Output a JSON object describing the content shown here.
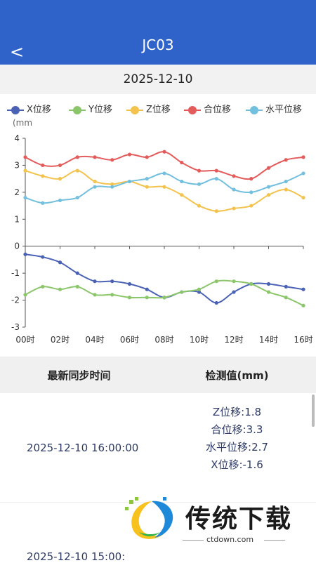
{
  "header": {
    "title": "JC03",
    "back_icon": "chevron-left-icon",
    "back_glyph": "<"
  },
  "date": "2025-12-10",
  "legend": [
    {
      "name": "X位移",
      "color": "#4a62b5"
    },
    {
      "name": "Y位移",
      "color": "#8cc66b"
    },
    {
      "name": "Z位移",
      "color": "#f3c34d"
    },
    {
      "name": "合位移",
      "color": "#e45b5b"
    },
    {
      "name": "水平位移",
      "color": "#73c0de"
    }
  ],
  "chart_data": {
    "type": "line",
    "unit_label": "(mm",
    "ylim": [
      -3,
      4
    ],
    "yticks": [
      4,
      3,
      2,
      1,
      0,
      -1,
      -2,
      -3
    ],
    "xticks": [
      "00时",
      "02时",
      "04时",
      "06时",
      "08时",
      "10时",
      "12时",
      "14时",
      "16时"
    ],
    "x_count": 17,
    "series": [
      {
        "name": "X位移",
        "color": "#4a62b5",
        "values": [
          -0.3,
          -0.4,
          -0.6,
          -1.0,
          -1.3,
          -1.3,
          -1.4,
          -1.6,
          -1.9,
          -1.7,
          -1.7,
          -2.1,
          -1.7,
          -1.4,
          -1.4,
          -1.5,
          -1.6
        ]
      },
      {
        "name": "Y位移",
        "color": "#8cc66b",
        "values": [
          -1.8,
          -1.5,
          -1.6,
          -1.5,
          -1.8,
          -1.8,
          -1.9,
          -1.9,
          -1.9,
          -1.7,
          -1.6,
          -1.3,
          -1.3,
          -1.4,
          -1.7,
          -1.9,
          -2.2
        ]
      },
      {
        "name": "Z位移",
        "color": "#f3c34d",
        "values": [
          2.8,
          2.6,
          2.5,
          2.8,
          2.4,
          2.3,
          2.4,
          2.2,
          2.2,
          1.9,
          1.5,
          1.3,
          1.4,
          1.5,
          1.9,
          2.1,
          1.8
        ]
      },
      {
        "name": "合位移",
        "color": "#e45b5b",
        "values": [
          3.3,
          3.0,
          3.0,
          3.3,
          3.3,
          3.2,
          3.4,
          3.3,
          3.5,
          3.1,
          2.8,
          2.8,
          2.6,
          2.5,
          2.9,
          3.2,
          3.3
        ]
      },
      {
        "name": "水平位移",
        "color": "#73c0de",
        "values": [
          1.8,
          1.6,
          1.7,
          1.8,
          2.2,
          2.2,
          2.4,
          2.5,
          2.7,
          2.4,
          2.3,
          2.5,
          2.1,
          2.0,
          2.2,
          2.4,
          2.7
        ]
      }
    ]
  },
  "table": {
    "headers": [
      "最新同步时间",
      "检测值(mm)"
    ],
    "rows": [
      {
        "time": "2025-12-10 16:00:00",
        "values": [
          "Z位移:1.8",
          "合位移:3.3",
          "水平位移:2.7",
          "X位移:-1.6"
        ]
      },
      {
        "time": "2025-12-10 15:00:",
        "values": []
      }
    ]
  },
  "watermark": {
    "text": "传统下载",
    "url": "ctdown.com"
  }
}
